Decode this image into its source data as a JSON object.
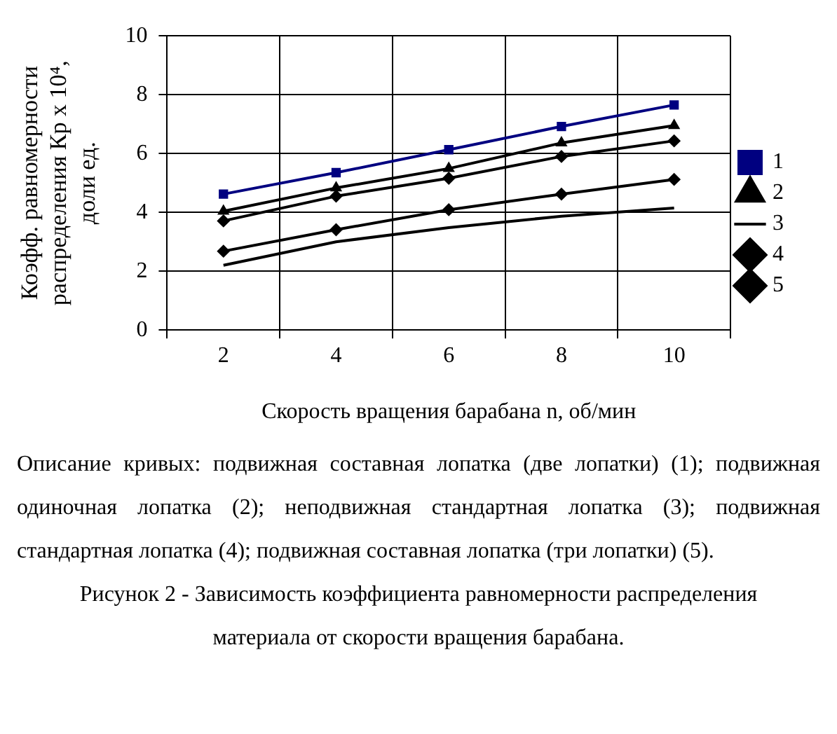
{
  "chart_data": {
    "type": "line",
    "xlabel": "Скорость вращения барабана n, об/мин",
    "ylabel": "Коэфф. равномерности распределения Кр х 10⁴, доли ед.",
    "categories": [
      "2",
      "4",
      "6",
      "8",
      "10"
    ],
    "series": [
      {
        "name": "1",
        "color": "#000080",
        "marker": "square",
        "values": [
          4.62,
          5.35,
          6.13,
          6.92,
          7.65
        ]
      },
      {
        "name": "2",
        "color": "#000000",
        "marker": "triangle",
        "values": [
          4.04,
          4.83,
          5.49,
          6.36,
          6.95
        ]
      },
      {
        "name": "3",
        "color": "#000000",
        "marker": "none",
        "values": [
          2.2,
          3.0,
          3.48,
          3.87,
          4.15
        ]
      },
      {
        "name": "4",
        "color": "#000000",
        "marker": "diamond",
        "values": [
          3.71,
          4.55,
          5.16,
          5.9,
          6.43
        ]
      },
      {
        "name": "5",
        "color": "#000000",
        "marker": "diamond",
        "values": [
          2.68,
          3.41,
          4.09,
          4.62,
          5.12
        ]
      }
    ],
    "ylim": [
      0,
      10
    ],
    "yticks": [
      0,
      2,
      4,
      6,
      8,
      10
    ],
    "grid": true,
    "legend": "right",
    "annotations": [
      "Описание кривых: подвижная составная лопатка (две лопатки) (1); подвижная одиночная лопатка (2); неподвижная стандартная лопатка (3); подвижная стандартная лопатка (4); подвижная составная лопатка (три лопатки) (5).",
      "Рисунок 2 - Зависимость коэффициента равномерности распределения материала от скорости вращения барабана."
    ]
  }
}
